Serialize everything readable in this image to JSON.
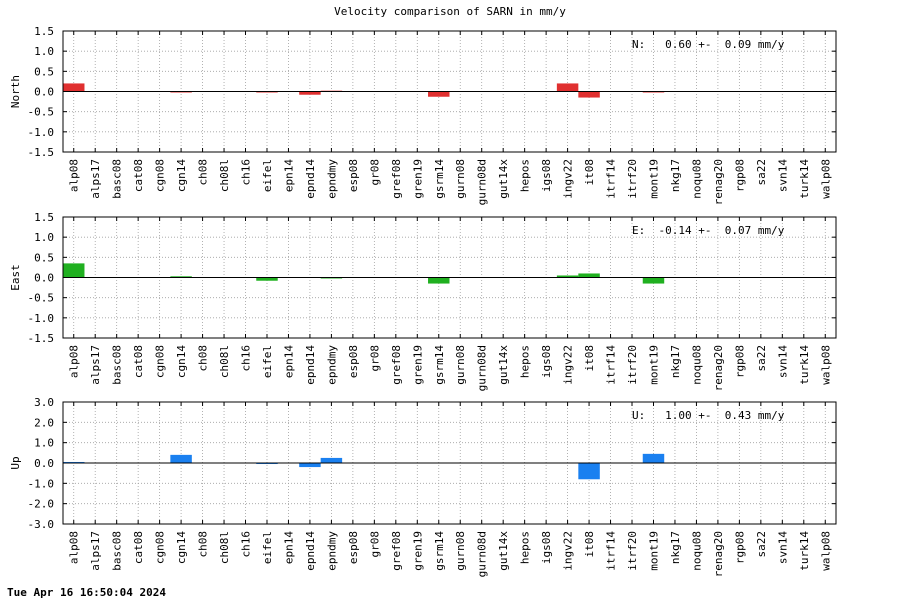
{
  "title": "Velocity comparison of SARN in mm/y",
  "timestamp": "Tue Apr 16 16:50:04 2024",
  "chart_data": {
    "type": "bar",
    "title": "Velocity comparison of SARN in mm/y",
    "categories": [
      "alp08",
      "alps17",
      "basc08",
      "cat08",
      "cgn08",
      "cgn14",
      "ch08",
      "ch08l",
      "ch16",
      "eifel",
      "epn14",
      "epnd14",
      "epndmy",
      "esp08",
      "gr08",
      "gref08",
      "gren19",
      "gsrm14",
      "gurn08",
      "gurn08d",
      "gut14x",
      "hepos",
      "igs08",
      "ingv22",
      "it08",
      "itrf14",
      "itrf20",
      "mont19",
      "nkg17",
      "noqu08",
      "renag20",
      "rgp08",
      "sa22",
      "svn14",
      "turk14",
      "walp08"
    ],
    "grid": true,
    "panels": [
      {
        "ylabel": "North",
        "ylim": [
          -1.5,
          1.5
        ],
        "yticks": [
          "1.5",
          "1.0",
          "0.5",
          "0.0",
          "-0.5",
          "-1.0",
          "-1.5"
        ],
        "annotation": "N:   0.60 +-  0.09 mm/y",
        "color": "#e03030",
        "values": [
          0.2,
          0,
          0,
          0,
          0,
          -0.02,
          0,
          0,
          0,
          -0.02,
          0,
          -0.08,
          0.02,
          0,
          0,
          0,
          0,
          -0.13,
          0,
          0,
          0,
          0,
          0,
          0.2,
          -0.15,
          0,
          0,
          -0.02,
          0,
          0,
          0,
          0,
          0,
          0,
          0,
          0
        ]
      },
      {
        "ylabel": "East",
        "ylim": [
          -1.5,
          1.5
        ],
        "yticks": [
          "1.5",
          "1.0",
          "0.5",
          "0.0",
          "-0.5",
          "-1.0",
          "-1.5"
        ],
        "annotation": "E:  -0.14 +-  0.07 mm/y",
        "color": "#20b020",
        "values": [
          0.35,
          0,
          0,
          0,
          0,
          0.03,
          0,
          0,
          0,
          -0.08,
          0,
          0,
          -0.02,
          0,
          0,
          0,
          0,
          -0.15,
          0,
          0,
          0,
          0,
          0,
          0.05,
          0.1,
          0,
          0,
          -0.15,
          0,
          0,
          0,
          0,
          0,
          0,
          0,
          0
        ]
      },
      {
        "ylabel": "Up",
        "ylim": [
          -3.0,
          3.0
        ],
        "yticks": [
          "3.0",
          "2.0",
          "1.0",
          "0.0",
          "-1.0",
          "-2.0",
          "-3.0"
        ],
        "annotation": "U:   1.00 +-  0.43 mm/y",
        "color": "#1a80f0",
        "values": [
          0.05,
          0,
          0,
          0,
          0,
          0.4,
          0,
          0,
          0,
          -0.05,
          0,
          -0.2,
          0.25,
          0,
          0,
          0,
          0,
          0,
          0,
          0,
          0,
          0,
          0,
          0,
          -0.8,
          0,
          0,
          0.45,
          0,
          0,
          0,
          0,
          0,
          0,
          0,
          0
        ]
      }
    ]
  }
}
